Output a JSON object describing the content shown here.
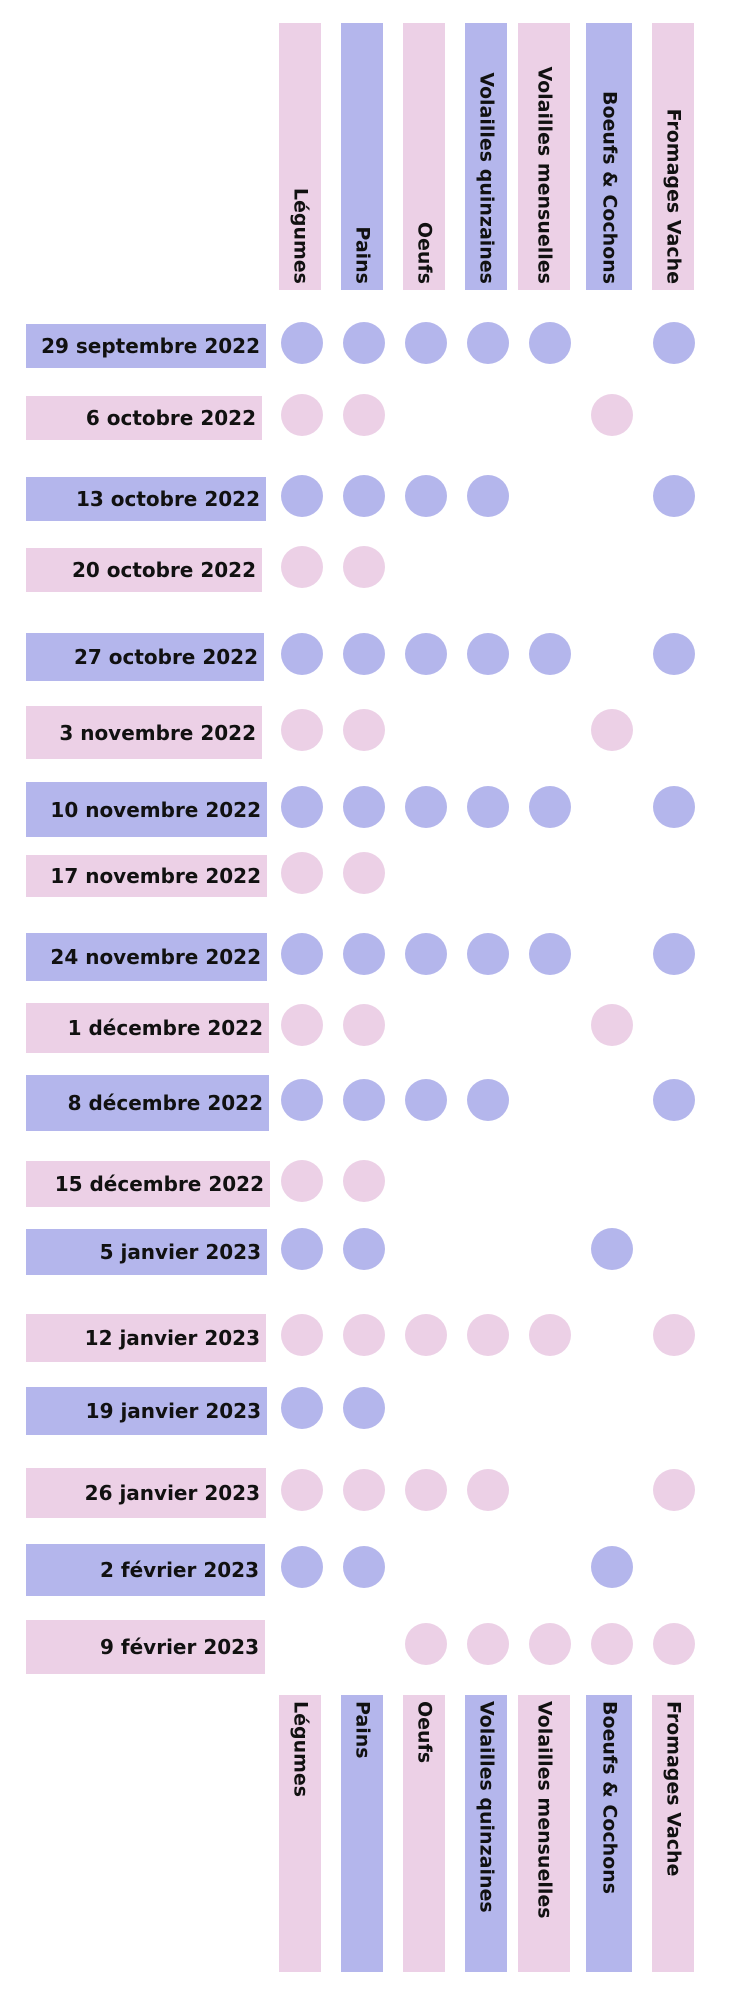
{
  "colors": {
    "blue": "#b4b6ec",
    "pink": "#ecd0e6"
  },
  "columns": [
    {
      "label": "Légumes",
      "color": "pink"
    },
    {
      "label": "Pains",
      "color": "blue"
    },
    {
      "label": "Oeufs",
      "color": "pink"
    },
    {
      "label": "Volailles quinzaines",
      "color": "blue"
    },
    {
      "label": "Volailles mensuelles",
      "color": "pink"
    },
    {
      "label": "Boeufs & Cochons",
      "color": "blue"
    },
    {
      "label": "Fromages Vache",
      "color": "pink"
    }
  ],
  "rows": [
    {
      "date": "29 septembre 2022",
      "color": "blue",
      "deliveries": [
        1,
        1,
        1,
        1,
        1,
        0,
        1
      ]
    },
    {
      "date": "6 octobre 2022",
      "color": "pink",
      "deliveries": [
        1,
        1,
        0,
        0,
        0,
        1,
        0
      ]
    },
    {
      "date": "13 octobre 2022",
      "color": "blue",
      "deliveries": [
        1,
        1,
        1,
        1,
        0,
        0,
        1
      ]
    },
    {
      "date": "20 octobre 2022",
      "color": "pink",
      "deliveries": [
        1,
        1,
        0,
        0,
        0,
        0,
        0
      ]
    },
    {
      "date": "27 octobre 2022",
      "color": "blue",
      "deliveries": [
        1,
        1,
        1,
        1,
        1,
        0,
        1
      ]
    },
    {
      "date": "3 novembre 2022",
      "color": "pink",
      "deliveries": [
        1,
        1,
        0,
        0,
        0,
        1,
        0
      ]
    },
    {
      "date": "10 novembre 2022",
      "color": "blue",
      "deliveries": [
        1,
        1,
        1,
        1,
        1,
        0,
        1
      ]
    },
    {
      "date": "17 novembre 2022",
      "color": "pink",
      "deliveries": [
        1,
        1,
        0,
        0,
        0,
        0,
        0
      ]
    },
    {
      "date": "24 novembre 2022",
      "color": "blue",
      "deliveries": [
        1,
        1,
        1,
        1,
        1,
        0,
        1
      ]
    },
    {
      "date": "1 décembre 2022",
      "color": "pink",
      "deliveries": [
        1,
        1,
        0,
        0,
        0,
        1,
        0
      ]
    },
    {
      "date": "8 décembre 2022",
      "color": "blue",
      "deliveries": [
        1,
        1,
        1,
        1,
        0,
        0,
        1
      ]
    },
    {
      "date": "15 décembre 2022",
      "color": "pink",
      "deliveries": [
        1,
        1,
        0,
        0,
        0,
        0,
        0
      ]
    },
    {
      "date": "5 janvier 2023",
      "color": "blue",
      "deliveries": [
        1,
        1,
        0,
        0,
        0,
        1,
        0
      ]
    },
    {
      "date": "12 janvier 2023",
      "color": "pink",
      "deliveries": [
        1,
        1,
        1,
        1,
        1,
        0,
        1
      ]
    },
    {
      "date": "19 janvier 2023",
      "color": "blue",
      "deliveries": [
        1,
        1,
        0,
        0,
        0,
        0,
        0
      ]
    },
    {
      "date": "26 janvier 2023",
      "color": "pink",
      "deliveries": [
        1,
        1,
        1,
        1,
        0,
        0,
        1
      ]
    },
    {
      "date": "2 février 2023",
      "color": "blue",
      "deliveries": [
        1,
        1,
        0,
        0,
        0,
        1,
        0
      ]
    },
    {
      "date": "9 février 2023",
      "color": "pink",
      "deliveries": [
        0,
        0,
        1,
        1,
        1,
        1,
        1
      ]
    }
  ]
}
